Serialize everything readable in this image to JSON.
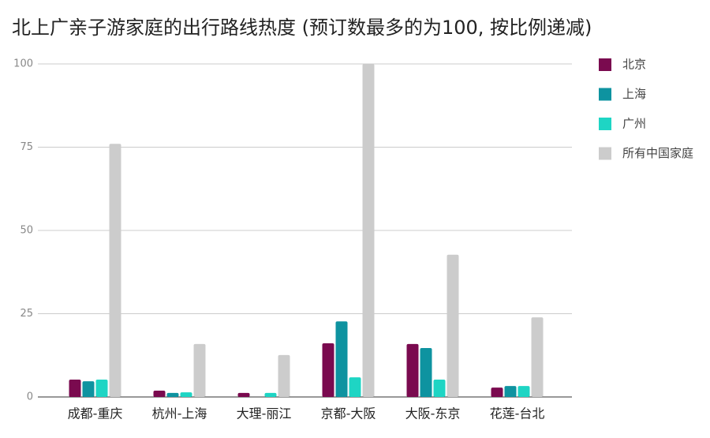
{
  "chart_data": {
    "type": "bar",
    "title": "北上广亲子游家庭的出行路线热度 (预订数最多的为100, 按比例递减)",
    "categories": [
      "成都-重庆",
      "杭州-上海",
      "大理-丽江",
      "京都-大阪",
      "大阪-东京",
      "花莲-台北"
    ],
    "series": [
      {
        "name": "北京",
        "color": "#7a0a4f",
        "values": [
          5.2,
          1.9,
          1.2,
          16.1,
          15.9,
          2.8
        ]
      },
      {
        "name": "上海",
        "color": "#0e93a0",
        "values": [
          4.7,
          1.2,
          0,
          22.7,
          14.7,
          3.3
        ]
      },
      {
        "name": "广州",
        "color": "#1ed5c4",
        "values": [
          5.2,
          1.4,
          1.2,
          5.9,
          5.2,
          3.3
        ]
      },
      {
        "name": "所有中国家庭",
        "color": "#cccccc",
        "values": [
          76,
          15.9,
          12.6,
          100,
          42.7,
          23.9
        ]
      }
    ],
    "ylim": [
      0,
      100
    ],
    "yticks": [
      0,
      25,
      50,
      75,
      100
    ],
    "grid": true,
    "legend": "right"
  }
}
